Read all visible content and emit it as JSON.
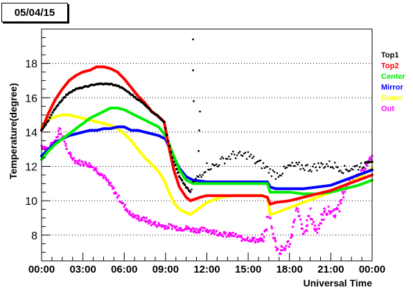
{
  "title_box": "05/04/15",
  "chart_data": {
    "type": "scatter",
    "title": "05/04/15",
    "xlabel": "Universal Time",
    "ylabel": "Temperature(degree)",
    "xlim": [
      0,
      24
    ],
    "ylim": [
      6.5,
      20.0
    ],
    "x_ticks": [
      {
        "v": 0,
        "label": "00:00"
      },
      {
        "v": 3,
        "label": "03:00"
      },
      {
        "v": 6,
        "label": "06:00"
      },
      {
        "v": 9,
        "label": "09:00"
      },
      {
        "v": 12,
        "label": "12:00"
      },
      {
        "v": 15,
        "label": "15:00"
      },
      {
        "v": 18,
        "label": "18:00"
      },
      {
        "v": 21,
        "label": "21:00"
      },
      {
        "v": 24,
        "label": "00:00"
      }
    ],
    "y_ticks": [
      8,
      10,
      12,
      14,
      16,
      18
    ],
    "grid": "horizontal dotted",
    "legend_position": "right",
    "series": [
      {
        "name": "Top1",
        "color": "#000000",
        "style": "scatter-dots",
        "points": [
          [
            0,
            14.1
          ],
          [
            0.5,
            14.7
          ],
          [
            1,
            15.4
          ],
          [
            1.5,
            15.9
          ],
          [
            2,
            16.3
          ],
          [
            2.5,
            16.5
          ],
          [
            3,
            16.6
          ],
          [
            3.5,
            16.7
          ],
          [
            4,
            16.8
          ],
          [
            4.5,
            16.8
          ],
          [
            5,
            16.8
          ],
          [
            5.5,
            16.7
          ],
          [
            6,
            16.5
          ],
          [
            6.5,
            16.2
          ],
          [
            7,
            15.9
          ],
          [
            7.5,
            15.6
          ],
          [
            8,
            15.2
          ],
          [
            8.5,
            14.9
          ],
          [
            8.9,
            14.6
          ],
          [
            9.2,
            13.5
          ],
          [
            9.5,
            12.5
          ],
          [
            10,
            11.4
          ],
          [
            10.5,
            10.8
          ],
          [
            10.8,
            10.5
          ],
          [
            11,
            11.0
          ],
          [
            11.5,
            11.5
          ],
          [
            12,
            12.0
          ],
          [
            12.5,
            12.0
          ],
          [
            13,
            12.3
          ],
          [
            13.5,
            12.5
          ],
          [
            14,
            12.7
          ],
          [
            14.5,
            12.6
          ],
          [
            15,
            12.7
          ],
          [
            15.5,
            12.3
          ],
          [
            16,
            12.1
          ],
          [
            16.5,
            11.8
          ],
          [
            17,
            11.5
          ],
          [
            17.5,
            11.7
          ],
          [
            18,
            12.0
          ],
          [
            18.5,
            12.0
          ],
          [
            19,
            12.0
          ],
          [
            19.5,
            11.9
          ],
          [
            20,
            12.0
          ],
          [
            20.5,
            12.1
          ],
          [
            21,
            12.1
          ],
          [
            21.5,
            12.0
          ],
          [
            22,
            11.8
          ],
          [
            22.5,
            11.9
          ],
          [
            23,
            12.0
          ],
          [
            23.5,
            12.2
          ],
          [
            24,
            12.3
          ]
        ],
        "outliers": [
          [
            11,
            19.4
          ],
          [
            11,
            17.6
          ],
          [
            11.05,
            15.8
          ],
          [
            11.5,
            15.2
          ],
          [
            11.45,
            14.1
          ],
          [
            11.4,
            12.9
          ]
        ]
      },
      {
        "name": "Top2",
        "color": "#ff0000",
        "style": "line",
        "points": [
          [
            0,
            14.1
          ],
          [
            0.5,
            15.1
          ],
          [
            1,
            15.9
          ],
          [
            1.5,
            16.5
          ],
          [
            2,
            17.0
          ],
          [
            2.5,
            17.3
          ],
          [
            3,
            17.5
          ],
          [
            3.5,
            17.6
          ],
          [
            4,
            17.8
          ],
          [
            4.5,
            17.8
          ],
          [
            5,
            17.7
          ],
          [
            5.5,
            17.5
          ],
          [
            6,
            17.1
          ],
          [
            6.5,
            16.6
          ],
          [
            7,
            16.1
          ],
          [
            7.5,
            15.7
          ],
          [
            8,
            15.2
          ],
          [
            8.5,
            14.9
          ],
          [
            8.9,
            14.6
          ],
          [
            9.2,
            13.3
          ],
          [
            9.6,
            11.8
          ],
          [
            10,
            10.8
          ],
          [
            10.5,
            10.2
          ],
          [
            10.8,
            10.0
          ],
          [
            11.5,
            10.2
          ],
          [
            12,
            10.3
          ],
          [
            13,
            10.3
          ],
          [
            14,
            10.3
          ],
          [
            15,
            10.3
          ],
          [
            16,
            10.3
          ],
          [
            16.4,
            10.2
          ],
          [
            16.6,
            9.8
          ],
          [
            17,
            9.9
          ],
          [
            18,
            10.0
          ],
          [
            19,
            10.2
          ],
          [
            20,
            10.4
          ],
          [
            21,
            10.6
          ],
          [
            22,
            10.9
          ],
          [
            23,
            11.2
          ],
          [
            24,
            11.5
          ]
        ]
      },
      {
        "name": "Center",
        "color": "#00ee00",
        "style": "line",
        "points": [
          [
            0,
            12.4
          ],
          [
            0.5,
            12.9
          ],
          [
            1,
            13.3
          ],
          [
            1.5,
            13.6
          ],
          [
            2,
            13.9
          ],
          [
            2.5,
            14.2
          ],
          [
            3,
            14.5
          ],
          [
            3.5,
            14.8
          ],
          [
            4,
            15.0
          ],
          [
            4.5,
            15.2
          ],
          [
            5,
            15.4
          ],
          [
            5.5,
            15.4
          ],
          [
            6,
            15.3
          ],
          [
            6.5,
            15.1
          ],
          [
            7,
            14.9
          ],
          [
            7.5,
            14.7
          ],
          [
            8,
            14.5
          ],
          [
            8.5,
            14.3
          ],
          [
            9,
            13.8
          ],
          [
            9.5,
            12.8
          ],
          [
            10,
            11.8
          ],
          [
            10.5,
            11.2
          ],
          [
            11,
            11.0
          ],
          [
            12,
            11.0
          ],
          [
            13,
            11.0
          ],
          [
            14,
            11.0
          ],
          [
            15,
            11.0
          ],
          [
            16,
            11.0
          ],
          [
            16.4,
            11.0
          ],
          [
            16.6,
            10.5
          ],
          [
            17,
            10.5
          ],
          [
            18,
            10.5
          ],
          [
            19,
            10.4
          ],
          [
            20,
            10.4
          ],
          [
            21,
            10.5
          ],
          [
            22,
            10.7
          ],
          [
            23,
            10.9
          ],
          [
            24,
            11.2
          ]
        ]
      },
      {
        "name": "Mirror",
        "color": "#0000ff",
        "style": "line",
        "points": [
          [
            0,
            12.6
          ],
          [
            0.5,
            13.0
          ],
          [
            1,
            13.4
          ],
          [
            1.5,
            13.6
          ],
          [
            2,
            13.8
          ],
          [
            2.5,
            13.9
          ],
          [
            3,
            14.0
          ],
          [
            3.5,
            14.1
          ],
          [
            4,
            14.1
          ],
          [
            4.5,
            14.2
          ],
          [
            5,
            14.2
          ],
          [
            5.5,
            14.3
          ],
          [
            6,
            14.3
          ],
          [
            6.5,
            14.1
          ],
          [
            7,
            14.1
          ],
          [
            7.5,
            14.0
          ],
          [
            8,
            13.9
          ],
          [
            8.5,
            13.8
          ],
          [
            9,
            13.6
          ],
          [
            9.5,
            12.7
          ],
          [
            10,
            11.9
          ],
          [
            10.5,
            11.4
          ],
          [
            11,
            11.2
          ],
          [
            12,
            11.1
          ],
          [
            13,
            11.1
          ],
          [
            14,
            11.1
          ],
          [
            15,
            11.1
          ],
          [
            16,
            11.1
          ],
          [
            16.4,
            11.1
          ],
          [
            16.6,
            10.8
          ],
          [
            17,
            10.7
          ],
          [
            18,
            10.7
          ],
          [
            19,
            10.7
          ],
          [
            20,
            10.8
          ],
          [
            21,
            10.9
          ],
          [
            22,
            11.2
          ],
          [
            23,
            11.5
          ],
          [
            24,
            11.8
          ]
        ]
      },
      {
        "name": "Dome",
        "color": "#ffff00",
        "style": "line",
        "points": [
          [
            0,
            14.3
          ],
          [
            0.5,
            14.7
          ],
          [
            1,
            14.9
          ],
          [
            1.5,
            15.0
          ],
          [
            2,
            15.0
          ],
          [
            2.5,
            14.9
          ],
          [
            3,
            14.8
          ],
          [
            3.5,
            14.7
          ],
          [
            4,
            14.6
          ],
          [
            4.5,
            14.5
          ],
          [
            5,
            14.4
          ],
          [
            5.5,
            14.2
          ],
          [
            6,
            13.9
          ],
          [
            6.5,
            13.5
          ],
          [
            7,
            13.0
          ],
          [
            7.5,
            12.5
          ],
          [
            8,
            12.1
          ],
          [
            8.5,
            11.7
          ],
          [
            8.9,
            11.2
          ],
          [
            9.2,
            10.6
          ],
          [
            9.6,
            9.9
          ],
          [
            10,
            9.5
          ],
          [
            10.5,
            9.3
          ],
          [
            10.8,
            9.2
          ],
          [
            11.5,
            9.6
          ],
          [
            12,
            9.9
          ],
          [
            13,
            10.2
          ],
          [
            14,
            10.3
          ],
          [
            15,
            10.3
          ],
          [
            16,
            10.3
          ],
          [
            16.4,
            10.2
          ],
          [
            16.6,
            9.2
          ],
          [
            17,
            9.3
          ],
          [
            18,
            9.6
          ],
          [
            19,
            9.9
          ],
          [
            20,
            10.2
          ],
          [
            21,
            10.5
          ],
          [
            22,
            10.9
          ],
          [
            23,
            11.3
          ],
          [
            24,
            11.9
          ]
        ]
      },
      {
        "name": "Out",
        "color": "#ff00ff",
        "style": "scatter-noisy",
        "points": [
          [
            0,
            13.2
          ],
          [
            0.5,
            13.0
          ],
          [
            1,
            13.5
          ],
          [
            1.3,
            14.2
          ],
          [
            1.6,
            13.6
          ],
          [
            2,
            12.7
          ],
          [
            2.5,
            12.3
          ],
          [
            3,
            12.2
          ],
          [
            3.5,
            12.1
          ],
          [
            4,
            11.8
          ],
          [
            4.5,
            11.4
          ],
          [
            5,
            10.9
          ],
          [
            5.5,
            10.3
          ],
          [
            6,
            9.7
          ],
          [
            6.5,
            9.2
          ],
          [
            7,
            9.0
          ],
          [
            7.5,
            8.9
          ],
          [
            8,
            8.7
          ],
          [
            8.5,
            8.6
          ],
          [
            9,
            8.5
          ],
          [
            9.5,
            8.5
          ],
          [
            10,
            8.4
          ],
          [
            10.5,
            8.4
          ],
          [
            11,
            8.3
          ],
          [
            11.5,
            8.3
          ],
          [
            12,
            8.3
          ],
          [
            12.5,
            8.2
          ],
          [
            13,
            8.1
          ],
          [
            13.5,
            8.0
          ],
          [
            14,
            8.0
          ],
          [
            14.5,
            7.8
          ],
          [
            15,
            7.8
          ],
          [
            15.5,
            7.7
          ],
          [
            16,
            7.7
          ],
          [
            16.3,
            8.2
          ],
          [
            16.5,
            9.6
          ],
          [
            16.7,
            8.6
          ],
          [
            17,
            7.5
          ],
          [
            17.3,
            7.0
          ],
          [
            17.6,
            7.2
          ],
          [
            18,
            7.6
          ],
          [
            18.3,
            8.6
          ],
          [
            18.5,
            9.6
          ],
          [
            18.8,
            8.8
          ],
          [
            19,
            8.0
          ],
          [
            19.3,
            8.6
          ],
          [
            19.5,
            9.3
          ],
          [
            19.8,
            8.5
          ],
          [
            20,
            8.3
          ],
          [
            20.3,
            8.9
          ],
          [
            20.6,
            9.4
          ],
          [
            21,
            9.4
          ],
          [
            21.3,
            9.3
          ],
          [
            21.6,
            9.6
          ],
          [
            21.8,
            10.2
          ],
          [
            22,
            10.6
          ],
          [
            22.3,
            11.1
          ],
          [
            22.6,
            11.3
          ],
          [
            23,
            11.4
          ],
          [
            23.3,
            11.7
          ],
          [
            23.6,
            12.1
          ],
          [
            24,
            12.6
          ]
        ]
      }
    ]
  }
}
